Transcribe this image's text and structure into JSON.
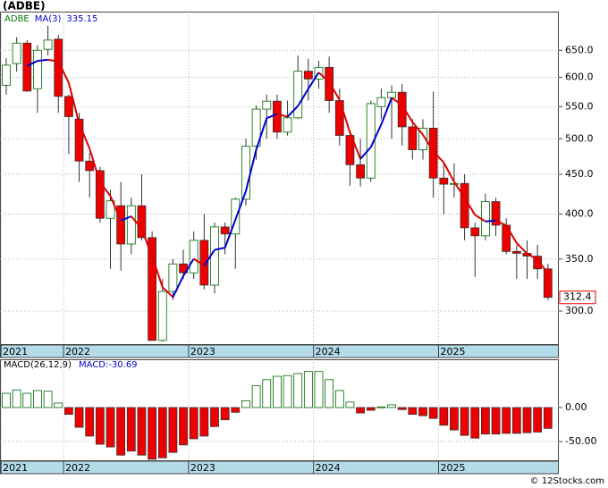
{
  "chart_data": [
    {
      "type": "candlestick",
      "title": "(ADBE)",
      "name": "ADBE",
      "categories": [
        "2021",
        null,
        null,
        null,
        null,
        null,
        "2022",
        null,
        null,
        null,
        null,
        null,
        null,
        null,
        null,
        null,
        null,
        null,
        "2023",
        null,
        null,
        null,
        null,
        null,
        null,
        null,
        null,
        null,
        null,
        null,
        "2024",
        null,
        null,
        null,
        null,
        null,
        null,
        null,
        null,
        null,
        null,
        null,
        "2025",
        null,
        null,
        null,
        null,
        null,
        null,
        null,
        null,
        null,
        null
      ],
      "open": [
        586,
        625,
        664,
        580,
        652,
        672,
        567,
        530,
        468,
        455,
        395,
        410,
        366,
        410,
        373,
        275,
        318,
        345,
        336,
        370,
        324,
        385,
        377,
        418,
        489,
        546,
        559,
        510,
        532,
        611,
        597,
        618,
        560,
        505,
        463,
        445,
        550,
        565,
        574,
        518,
        484,
        516,
        445,
        437,
        438,
        384,
        375,
        415,
        387,
        358,
        356,
        353,
        340
      ],
      "high": [
        635,
        676,
        670,
        660,
        699,
        680,
        570,
        540,
        480,
        460,
        430,
        440,
        420,
        450,
        380,
        330,
        350,
        360,
        380,
        400,
        390,
        390,
        420,
        500,
        552,
        570,
        570,
        560,
        640,
        634,
        630,
        638,
        580,
        510,
        500,
        560,
        580,
        586,
        588,
        530,
        530,
        575,
        465,
        465,
        450,
        390,
        425,
        420,
        395,
        365,
        370,
        365,
        345
      ],
      "low": [
        570,
        610,
        575,
        540,
        640,
        540,
        478,
        440,
        420,
        390,
        340,
        338,
        355,
        370,
        275,
        274,
        310,
        330,
        330,
        320,
        316,
        355,
        340,
        410,
        470,
        500,
        500,
        505,
        530,
        560,
        580,
        540,
        490,
        435,
        434,
        440,
        530,
        500,
        490,
        470,
        470,
        420,
        400,
        420,
        370,
        332,
        370,
        375,
        355,
        330,
        330,
        330,
        310
      ],
      "close": [
        622,
        664,
        576,
        650,
        670,
        567,
        534,
        468,
        455,
        395,
        416,
        366,
        410,
        373,
        275,
        318,
        345,
        336,
        370,
        324,
        385,
        377,
        418,
        489,
        546,
        559,
        510,
        532,
        611,
        597,
        618,
        560,
        505,
        463,
        445,
        555,
        565,
        574,
        518,
        484,
        516,
        445,
        437,
        438,
        384,
        375,
        415,
        387,
        358,
        356,
        353.05,
        340,
        312.4
      ],
      "up_color": "#ffffff",
      "up_edge": "#006600",
      "down_color": "#ee0000",
      "down_edge": "#333333",
      "ylim": [
        272,
        729
      ],
      "log_scale": true,
      "yticks": [
        {
          "value": 650,
          "label": "650.0"
        },
        {
          "value": 600,
          "label": "600.0"
        },
        {
          "value": 550,
          "label": "550.0"
        },
        {
          "value": 500,
          "label": "500.0"
        },
        {
          "value": 450,
          "label": "450.0"
        },
        {
          "value": 400,
          "label": "400.0"
        },
        {
          "value": 350,
          "label": "350.0"
        },
        {
          "value": 300,
          "label": "300.0"
        }
      ],
      "grid": true,
      "name_color": "#007700",
      "ma": {
        "name": "MA(3)",
        "rise_color": "#0000cc",
        "fall_color": "#dd0000",
        "values": [
          null,
          null,
          620.67,
          630,
          632,
          629,
          590.33,
          523,
          485.67,
          439.33,
          422,
          392.33,
          397.33,
          383,
          352.67,
          322,
          312.67,
          333,
          350.33,
          343.33,
          359.67,
          362,
          393.33,
          428,
          484.33,
          531.33,
          538.33,
          533.67,
          551,
          580,
          608.67,
          591.67,
          561,
          509.33,
          471,
          487.67,
          521.67,
          564.67,
          552.33,
          525.33,
          506,
          481.67,
          466,
          440,
          419.67,
          399,
          391.33,
          392.33,
          386.67,
          367,
          355.68,
          349.68,
          335.15
        ]
      }
    },
    {
      "type": "bar",
      "title": "MACD(26,12,9)",
      "value_name": "MACD:",
      "values": [
        21,
        26,
        21,
        25,
        24,
        6.6,
        -10,
        -29,
        -42,
        -54,
        -58,
        -70,
        -64,
        -70,
        -76,
        -74,
        -66,
        -55,
        -46,
        -42,
        -28,
        -18,
        -7,
        10,
        32,
        41,
        46,
        47,
        50,
        53,
        53,
        41,
        25,
        8,
        -8,
        -4,
        1,
        4,
        -3,
        -10,
        -12,
        -16,
        -26,
        -33,
        -41,
        -45,
        -39,
        -39,
        -38,
        -38,
        -37,
        -36,
        -30.69
      ],
      "pos_color": "#ffffff",
      "pos_edge": "#006600",
      "neg_color": "#ee0000",
      "neg_edge": "#333333",
      "name_color": "#0000cc",
      "ylim": [
        -77.6,
        71
      ],
      "yticks": [
        {
          "value": 0,
          "label": "0.00"
        },
        {
          "value": -50,
          "label": "-50.00"
        }
      ],
      "grid": true
    }
  ],
  "footer": "© 12Stocks.com"
}
